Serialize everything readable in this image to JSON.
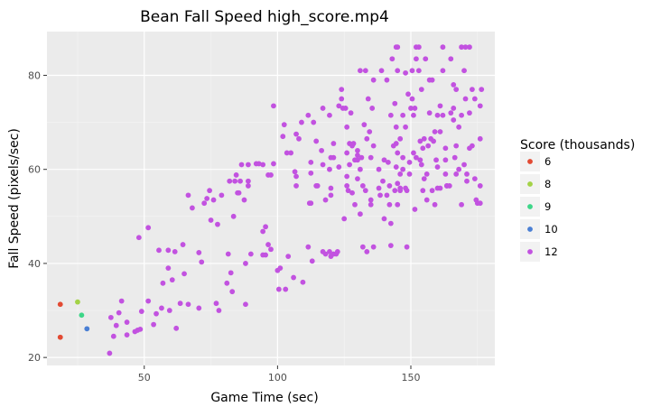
{
  "chart_data": {
    "type": "scatter",
    "title": "Bean Fall Speed high_score.mp4",
    "xlabel": "Game Time (sec)",
    "ylabel": "Fall Speed (pixels/sec)",
    "xlim": [
      13.5,
      181.5
    ],
    "ylim": [
      18.3,
      89.3
    ],
    "xticks": [
      50,
      100,
      150
    ],
    "yticks": [
      20,
      40,
      60,
      80
    ],
    "grid": true,
    "legend": {
      "title": "Score (thousands)",
      "placement": "right",
      "entries": [
        {
          "label": "6",
          "color": "#e24a33"
        },
        {
          "label": "8",
          "color": "#a3d246"
        },
        {
          "label": "9",
          "color": "#3dd688"
        },
        {
          "label": "10",
          "color": "#4a7fd4"
        },
        {
          "label": "12",
          "color": "#c252e0"
        }
      ]
    },
    "series": [
      {
        "name": "6",
        "color": "#e24a33",
        "points": [
          [
            18.5,
            31.3
          ],
          [
            18.5,
            24.3
          ]
        ]
      },
      {
        "name": "8",
        "color": "#a3d246",
        "points": [
          [
            25.0,
            31.8
          ]
        ]
      },
      {
        "name": "9",
        "color": "#3dd688",
        "points": [
          [
            26.5,
            29.0
          ]
        ]
      },
      {
        "name": "10",
        "color": "#4a7fd4",
        "points": [
          [
            28.5,
            26.1
          ]
        ]
      },
      {
        "name": "12",
        "color": "#c252e0",
        "points": [
          [
            37,
            20.9
          ],
          [
            37.5,
            28.5
          ],
          [
            38.5,
            24.5
          ],
          [
            39.5,
            26.8
          ],
          [
            40.5,
            29.5
          ],
          [
            41.5,
            32.0
          ],
          [
            43.5,
            27.5
          ],
          [
            43.5,
            24.8
          ],
          [
            46.5,
            25.5
          ],
          [
            47.5,
            25.8
          ],
          [
            48.5,
            26.0
          ],
          [
            48,
            45.5
          ],
          [
            49,
            29.8
          ],
          [
            51.5,
            47.6
          ],
          [
            51.5,
            32.0
          ],
          [
            53.5,
            27.0
          ],
          [
            54.5,
            29.3
          ],
          [
            55.5,
            42.8
          ],
          [
            56.5,
            30.5
          ],
          [
            57,
            35.8
          ],
          [
            59,
            42.8
          ],
          [
            59,
            39.0
          ],
          [
            59.5,
            30.0
          ],
          [
            60.5,
            36.5
          ],
          [
            61.5,
            42.5
          ],
          [
            62,
            26.2
          ],
          [
            63.5,
            31.5
          ],
          [
            64.5,
            44.0
          ],
          [
            65,
            37.8
          ],
          [
            66.5,
            54.5
          ],
          [
            66.5,
            31.3
          ],
          [
            68,
            51.8
          ],
          [
            70.5,
            42.3
          ],
          [
            70.5,
            30.5
          ],
          [
            71.5,
            40.3
          ],
          [
            72.5,
            52.8
          ],
          [
            73.5,
            53.8
          ],
          [
            74.5,
            55.5
          ],
          [
            75,
            49.2
          ],
          [
            76,
            53.5
          ],
          [
            77,
            31.5
          ],
          [
            77.5,
            48.3
          ],
          [
            78,
            30.0
          ],
          [
            79,
            54.5
          ],
          [
            81,
            35.8
          ],
          [
            81.5,
            42.0
          ],
          [
            82,
            57.5
          ],
          [
            82.5,
            38.0
          ],
          [
            83,
            34.0
          ],
          [
            83.5,
            50.0
          ],
          [
            84,
            57.5
          ],
          [
            84.5,
            58.8
          ],
          [
            85,
            55.0
          ],
          [
            85.5,
            55.0
          ],
          [
            86,
            57.5
          ],
          [
            86.5,
            61.0
          ],
          [
            87.5,
            53.5
          ],
          [
            88,
            31.3
          ],
          [
            88,
            40.0
          ],
          [
            89,
            57.5
          ],
          [
            89,
            56.5
          ],
          [
            89,
            61.0
          ],
          [
            90,
            42.0
          ],
          [
            92,
            61.2
          ],
          [
            93,
            61.2
          ],
          [
            94.5,
            46.8
          ],
          [
            94.5,
            41.8
          ],
          [
            94.5,
            61.0
          ],
          [
            95.5,
            47.8
          ],
          [
            95.5,
            41.8
          ],
          [
            96.5,
            58.8
          ],
          [
            96.5,
            44.0
          ],
          [
            97.5,
            43.0
          ],
          [
            97.5,
            58.8
          ],
          [
            98.5,
            73.5
          ],
          [
            98.5,
            61.2
          ],
          [
            100,
            38.5
          ],
          [
            100.5,
            34.5
          ],
          [
            101,
            39.0
          ],
          [
            102,
            67.0
          ],
          [
            102.5,
            69.5
          ],
          [
            103,
            34.5
          ],
          [
            103.5,
            63.5
          ],
          [
            104,
            41.5
          ],
          [
            105,
            63.5
          ],
          [
            106,
            37.0
          ],
          [
            106.5,
            59.5
          ],
          [
            107,
            56.5
          ],
          [
            107,
            67.5
          ],
          [
            107,
            58.5
          ],
          [
            108,
            66.5
          ],
          [
            109,
            70.0
          ],
          [
            109.5,
            36.0
          ],
          [
            111.5,
            71.5
          ],
          [
            111.5,
            43.5
          ],
          [
            112,
            52.8
          ],
          [
            112.5,
            52.8
          ],
          [
            112.5,
            61.5
          ],
          [
            112.5,
            59.2
          ],
          [
            113,
            40.5
          ],
          [
            113.5,
            70.0
          ],
          [
            114.5,
            56.5
          ],
          [
            114.5,
            66.0
          ],
          [
            115,
            56.5
          ],
          [
            116.5,
            64.0
          ],
          [
            117,
            42.5
          ],
          [
            117,
            61.0
          ],
          [
            117,
            73.0
          ],
          [
            118,
            53.5
          ],
          [
            118,
            42.0
          ],
          [
            119.5,
            71.5
          ],
          [
            119.5,
            42.5
          ],
          [
            119.5,
            60.0
          ],
          [
            120,
            41.5
          ],
          [
            120,
            56.0
          ],
          [
            120,
            62.5
          ],
          [
            120,
            54.5
          ],
          [
            121,
            65.5
          ],
          [
            121,
            42.0
          ],
          [
            121,
            62.5
          ],
          [
            122,
            42.0
          ],
          [
            122.5,
            42.5
          ],
          [
            123,
            60.5
          ],
          [
            123,
            73.5
          ],
          [
            124,
            77.0
          ],
          [
            124,
            75.0
          ],
          [
            124.5,
            73.0
          ],
          [
            125,
            49.5
          ],
          [
            125.5,
            73.0
          ],
          [
            126,
            56.5
          ],
          [
            126,
            58.5
          ],
          [
            126,
            69.0
          ],
          [
            126,
            63.5
          ],
          [
            126.5,
            55.5
          ],
          [
            127,
            65.5
          ],
          [
            127,
            61.0
          ],
          [
            127.5,
            72.0
          ],
          [
            128,
            65.0
          ],
          [
            128,
            55.0
          ],
          [
            128.5,
            65.5
          ],
          [
            129,
            62.0
          ],
          [
            129,
            52.5
          ],
          [
            130,
            64.0
          ],
          [
            130,
            58.0
          ],
          [
            130,
            63.0
          ],
          [
            130,
            62.0
          ],
          [
            131,
            81.0
          ],
          [
            131,
            50.5
          ],
          [
            131.5,
            62.5
          ],
          [
            131,
            60.0
          ],
          [
            132,
            43.5
          ],
          [
            132,
            56.5
          ],
          [
            132.5,
            69.5
          ],
          [
            133,
            81.0
          ],
          [
            133,
            55.5
          ],
          [
            133.5,
            42.5
          ],
          [
            133.5,
            66.5
          ],
          [
            134,
            75.0
          ],
          [
            134.5,
            68.0
          ],
          [
            135,
            53.5
          ],
          [
            135,
            62.5
          ],
          [
            135,
            52.5
          ],
          [
            135.5,
            73.0
          ],
          [
            136,
            65.0
          ],
          [
            136,
            79.0
          ],
          [
            136,
            43.5
          ],
          [
            138,
            56.0
          ],
          [
            138,
            60.0
          ],
          [
            138.5,
            54.5
          ],
          [
            139,
            81.0
          ],
          [
            139.5,
            57.5
          ],
          [
            140,
            62.0
          ],
          [
            140,
            49.5
          ],
          [
            141,
            54.5
          ],
          [
            141,
            79.0
          ],
          [
            141.5,
            61.5
          ],
          [
            142,
            56.5
          ],
          [
            142,
            52.5
          ],
          [
            142.5,
            71.5
          ],
          [
            142.5,
            43.8
          ],
          [
            142.5,
            48.5
          ],
          [
            143,
            83.5
          ],
          [
            143.5,
            65.0
          ],
          [
            144,
            55.5
          ],
          [
            144,
            74.0
          ],
          [
            144.5,
            86.0
          ],
          [
            144.5,
            69.0
          ],
          [
            144.5,
            65.5
          ],
          [
            144.5,
            60.5
          ],
          [
            145,
            57.0
          ],
          [
            145,
            63.5
          ],
          [
            145,
            52.5
          ],
          [
            145,
            81.0
          ],
          [
            145,
            86.0
          ],
          [
            146,
            66.5
          ],
          [
            146,
            59.0
          ],
          [
            146,
            55.5
          ],
          [
            146,
            56.0
          ],
          [
            147,
            71.5
          ],
          [
            147,
            62.5
          ],
          [
            147,
            60.0
          ],
          [
            148,
            69.0
          ],
          [
            148,
            80.5
          ],
          [
            148,
            56.0
          ],
          [
            148.5,
            43.5
          ],
          [
            148.5,
            55.5
          ],
          [
            149,
            76.0
          ],
          [
            149.5,
            61.5
          ],
          [
            149.5,
            59.0
          ],
          [
            150,
            73.0
          ],
          [
            150.5,
            81.0
          ],
          [
            150.5,
            75.0
          ],
          [
            151,
            63.5
          ],
          [
            151,
            71.5
          ],
          [
            151.5,
            51.5
          ],
          [
            151.5,
            73.0
          ],
          [
            152,
            86.0
          ],
          [
            152,
            83.5
          ],
          [
            152,
            62.5
          ],
          [
            153,
            81.0
          ],
          [
            153,
            86.0
          ],
          [
            153.5,
            66.0
          ],
          [
            153.5,
            62.0
          ],
          [
            154,
            61.0
          ],
          [
            154,
            77.0
          ],
          [
            154.5,
            64.5
          ],
          [
            154.5,
            55.5
          ],
          [
            155,
            58.0
          ],
          [
            155,
            66.5
          ],
          [
            155.5,
            83.5
          ],
          [
            156,
            59.0
          ],
          [
            156,
            53.5
          ],
          [
            156.5,
            65.0
          ],
          [
            157,
            79.0
          ],
          [
            157,
            72.0
          ],
          [
            157.5,
            66.5
          ],
          [
            158,
            79.0
          ],
          [
            158,
            55.5
          ],
          [
            158.5,
            66.0
          ],
          [
            159,
            68.0
          ],
          [
            159,
            52.5
          ],
          [
            159.5,
            62.0
          ],
          [
            160,
            71.5
          ],
          [
            160,
            56.0
          ],
          [
            160,
            60.5
          ],
          [
            161,
            73.5
          ],
          [
            161,
            68.0
          ],
          [
            161,
            56.0
          ],
          [
            162,
            86.0
          ],
          [
            162,
            81.0
          ],
          [
            162,
            71.5
          ],
          [
            163,
            64.5
          ],
          [
            163,
            62.0
          ],
          [
            163,
            59.0
          ],
          [
            163.5,
            56.5
          ],
          [
            163.5,
            56.5
          ],
          [
            164.5,
            56.5
          ],
          [
            165,
            72.0
          ],
          [
            165,
            83.5
          ],
          [
            166,
            70.5
          ],
          [
            166,
            73.0
          ],
          [
            166,
            78.0
          ],
          [
            166.5,
            62.5
          ],
          [
            167,
            65.0
          ],
          [
            167,
            77.0
          ],
          [
            167,
            59.0
          ],
          [
            168,
            60.0
          ],
          [
            168,
            69.0
          ],
          [
            169,
            86.0
          ],
          [
            169,
            52.5
          ],
          [
            169,
            71.5
          ],
          [
            170,
            81.0
          ],
          [
            170,
            61.0
          ],
          [
            170.5,
            86.0
          ],
          [
            170.5,
            75.0
          ],
          [
            171,
            59.0
          ],
          [
            171,
            57.5
          ],
          [
            172,
            72.0
          ],
          [
            172,
            86.0
          ],
          [
            172,
            64.5
          ],
          [
            173,
            77.0
          ],
          [
            173,
            65.0
          ],
          [
            174,
            75.0
          ],
          [
            174,
            58.0
          ],
          [
            174.5,
            53.5
          ],
          [
            175,
            52.8
          ],
          [
            176,
            56.5
          ],
          [
            176,
            52.8
          ],
          [
            176,
            66.5
          ],
          [
            176,
            73.5
          ],
          [
            176.5,
            77.0
          ]
        ]
      }
    ]
  }
}
